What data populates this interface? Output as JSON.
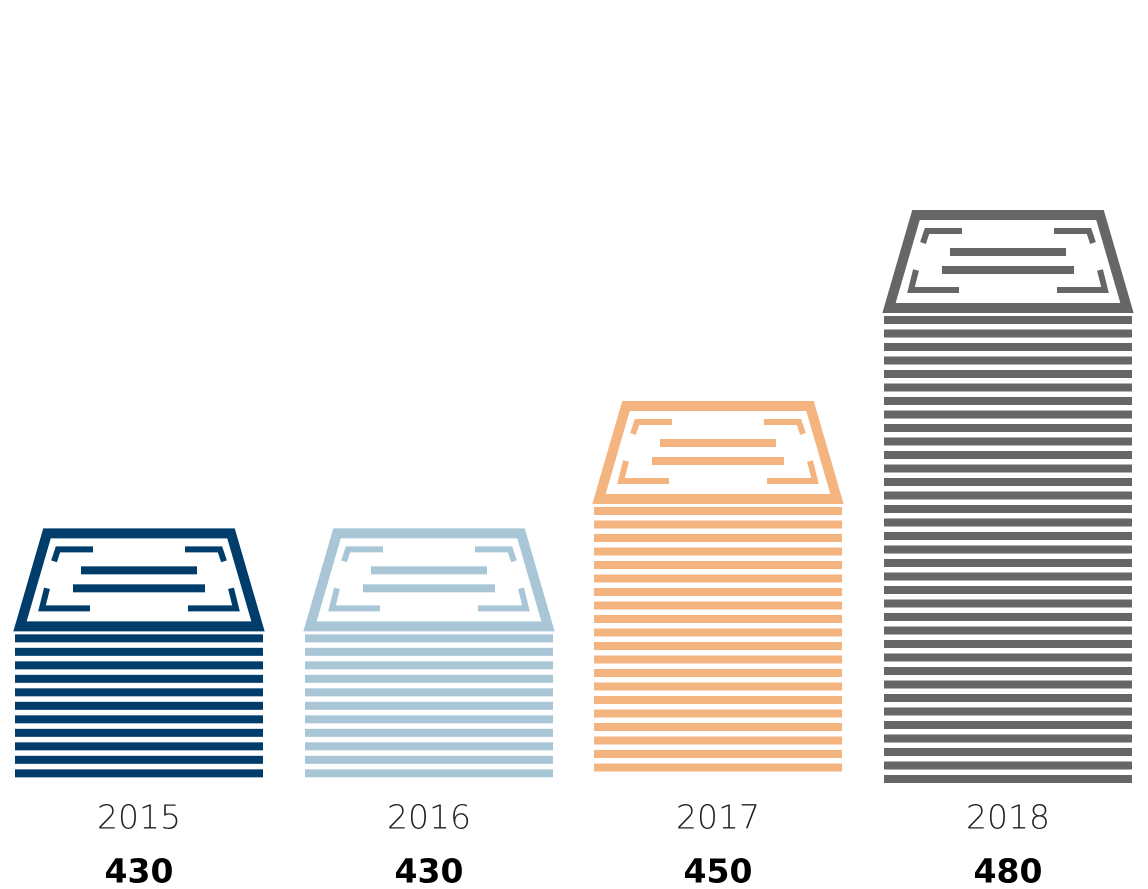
{
  "chart_data": {
    "type": "bar",
    "categories": [
      "2015",
      "2016",
      "2017",
      "2018"
    ],
    "values": [
      430,
      430,
      450,
      480
    ],
    "colors": [
      "#003d6b",
      "#a9c6d6",
      "#f4b480",
      "#666666"
    ],
    "ylim": [
      390,
      480
    ]
  }
}
